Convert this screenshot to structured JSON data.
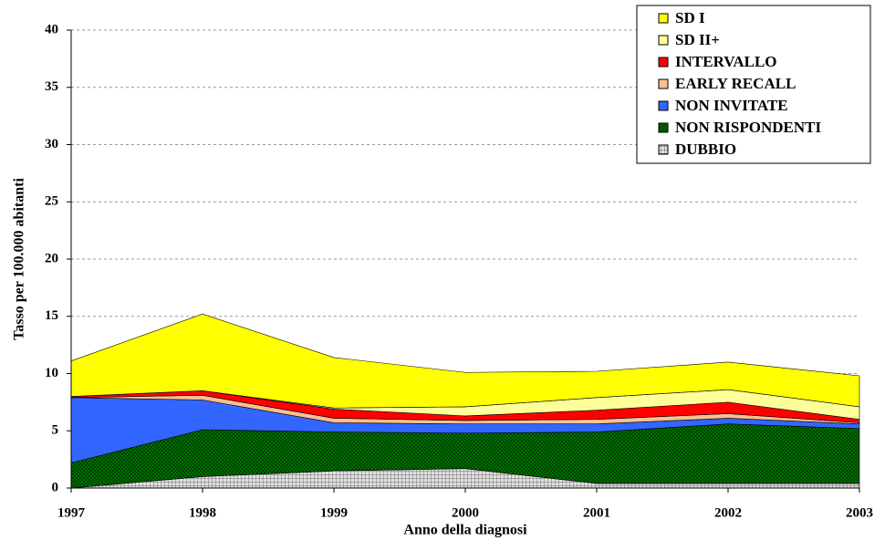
{
  "chart_data": {
    "type": "stacked_area",
    "x_label": "Anno della diagnosi",
    "y_label": "Tasso per 100.000 abitanti",
    "x": [
      1997,
      1998,
      1999,
      2000,
      2001,
      2002,
      2003
    ],
    "xlim": [
      1997,
      2003
    ],
    "xticks": [
      1997,
      1998,
      1999,
      2000,
      2001,
      2002,
      2003
    ],
    "ylim": [
      0,
      40
    ],
    "yticks": [
      0,
      5,
      10,
      15,
      20,
      25,
      30,
      35,
      40
    ],
    "grid": true,
    "legend": "top-right",
    "series": [
      {
        "name": "DUBBIO",
        "color": "#a0a0a0",
        "pattern": "grid",
        "values": [
          0,
          1.0,
          1.5,
          1.7,
          0.4,
          0.4,
          0.4
        ]
      },
      {
        "name": "NON RISPONDENTI",
        "color": "#008000",
        "pattern": "cross",
        "values": [
          2.2,
          4.1,
          3.4,
          3.1,
          4.5,
          5.2,
          4.8
        ]
      },
      {
        "name": "NON INVITATE",
        "color": "#3366ff",
        "values": [
          5.7,
          2.6,
          0.8,
          0.8,
          0.7,
          0.5,
          0.4
        ]
      },
      {
        "name": "EARLY RECALL",
        "color": "#ffc090",
        "values": [
          0,
          0.4,
          0.4,
          0.3,
          0.4,
          0.4,
          0.1
        ]
      },
      {
        "name": "INTERVALLO",
        "color": "#ff0000",
        "values": [
          0.1,
          0.4,
          0.8,
          0.4,
          0.8,
          1.0,
          0.3
        ]
      },
      {
        "name": "SD II+",
        "color": "#ffff99",
        "values": [
          0,
          0,
          0.1,
          0.8,
          1.1,
          1.1,
          1.1
        ]
      },
      {
        "name": "SD I",
        "color": "#ffff00",
        "values": [
          3.1,
          6.7,
          4.4,
          3.0,
          2.3,
          2.4,
          2.7
        ]
      }
    ]
  }
}
